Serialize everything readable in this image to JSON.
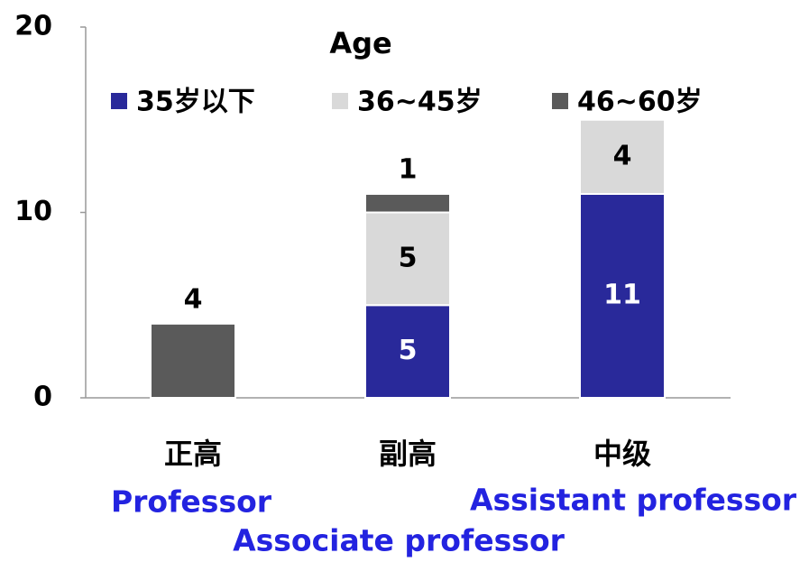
{
  "chart_data": {
    "type": "stacked_bar",
    "legend_title": "Age",
    "categories": [
      "正高",
      "副高",
      "中级"
    ],
    "category_subtitles": [
      "Professor",
      "Associate professor",
      "Assistant professor"
    ],
    "series": [
      {
        "name": "35岁以下",
        "color": "#29299a",
        "values": [
          null,
          5,
          11
        ]
      },
      {
        "name": "36~45岁",
        "color": "#d9d9d9",
        "values": [
          null,
          5,
          4
        ]
      },
      {
        "name": "46~60岁",
        "color": "#5a5a5a",
        "values": [
          4,
          1,
          null
        ]
      }
    ],
    "ylim": [
      0,
      20
    ],
    "yticks": [
      0,
      10,
      20
    ],
    "legend": "top"
  }
}
